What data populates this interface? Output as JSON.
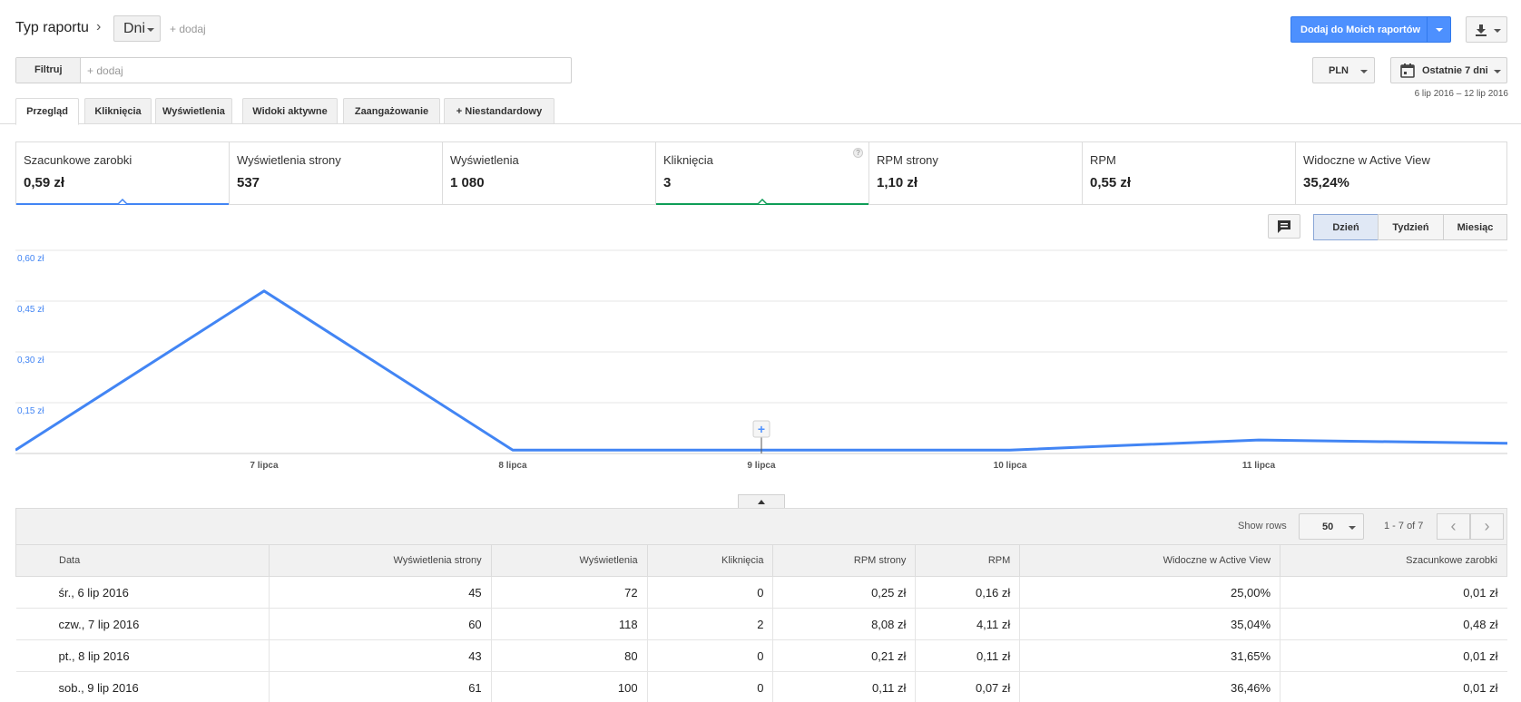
{
  "header": {
    "report_type_label": "Typ raportu",
    "separator": "›",
    "dimension": "Dni",
    "add_dimension": "+ dodaj",
    "add_report_button": "Dodaj do Moich raportów"
  },
  "filter": {
    "label": "Filtruj",
    "placeholder": "+ dodaj"
  },
  "currency": "PLN",
  "date": {
    "preset": "Ostatnie 7 dni",
    "range": "6 lip 2016 – 12 lip 2016"
  },
  "tabs": [
    {
      "label": "Przegląd",
      "active": true
    },
    {
      "label": "Kliknięcia"
    },
    {
      "label": "Wyświetlenia"
    },
    {
      "label": "Widoki aktywne"
    },
    {
      "label": "Zaangażowanie"
    },
    {
      "label": "+  Niestandardowy"
    }
  ],
  "scorecards": [
    {
      "name": "Szacunkowe zarobki",
      "value": "0,59 zł",
      "selected_color": "#4285f4"
    },
    {
      "name": "Wyświetlenia strony",
      "value": "537"
    },
    {
      "name": "Wyświetlenia",
      "value": "1 080"
    },
    {
      "name": "Kliknięcia",
      "value": "3",
      "help": "?",
      "selected_color": "#0f9d58"
    },
    {
      "name": "RPM strony",
      "value": "1,10 zł"
    },
    {
      "name": "RPM",
      "value": "0,55 zł"
    },
    {
      "name": "Widoczne w Active View",
      "value": "35,24%"
    }
  ],
  "granularity": [
    {
      "label": "Dzień",
      "active": true
    },
    {
      "label": "Tydzień"
    },
    {
      "label": "Miesiąc"
    }
  ],
  "chart_data": {
    "type": "line",
    "x": [
      "6 lipca",
      "7 lipca",
      "8 lipca",
      "9 lipca",
      "10 lipca",
      "11 lipca",
      "12 lipca"
    ],
    "x_tick_labels": [
      "7 lipca",
      "8 lipca",
      "9 lipca",
      "10 lipca",
      "11 lipca"
    ],
    "series": [
      {
        "values": [
          0.01,
          0.48,
          0.01,
          0.01,
          0.01,
          0.04,
          0.03
        ],
        "color": "#4285f4"
      }
    ],
    "y_ticks": [
      "0,60 zł",
      "0,45 zł",
      "0,30 zł",
      "0,15 zł"
    ],
    "y_tick_values": [
      0.6,
      0.45,
      0.3,
      0.15
    ],
    "ylim": [
      0,
      0.6
    ],
    "grid": true
  },
  "table": {
    "show_rows_label": "Show rows",
    "rows_per_page": "50",
    "pager_info": "1 - 7 of 7",
    "columns": [
      "Data",
      "Wyświetlenia strony",
      "Wyświetlenia",
      "Kliknięcia",
      "RPM strony",
      "RPM",
      "Widoczne w Active View",
      "Szacunkowe zarobki"
    ],
    "rows": [
      [
        "śr., 6 lip 2016",
        "45",
        "72",
        "0",
        "0,25 zł",
        "0,16 zł",
        "25,00%",
        "0,01 zł"
      ],
      [
        "czw., 7 lip 2016",
        "60",
        "118",
        "2",
        "8,08 zł",
        "4,11 zł",
        "35,04%",
        "0,48 zł"
      ],
      [
        "pt., 8 lip 2016",
        "43",
        "80",
        "0",
        "0,21 zł",
        "0,11 zł",
        "31,65%",
        "0,01 zł"
      ],
      [
        "sob., 9 lip 2016",
        "61",
        "100",
        "0",
        "0,11 zł",
        "0,07 zł",
        "36,46%",
        "0,01 zł"
      ]
    ]
  }
}
